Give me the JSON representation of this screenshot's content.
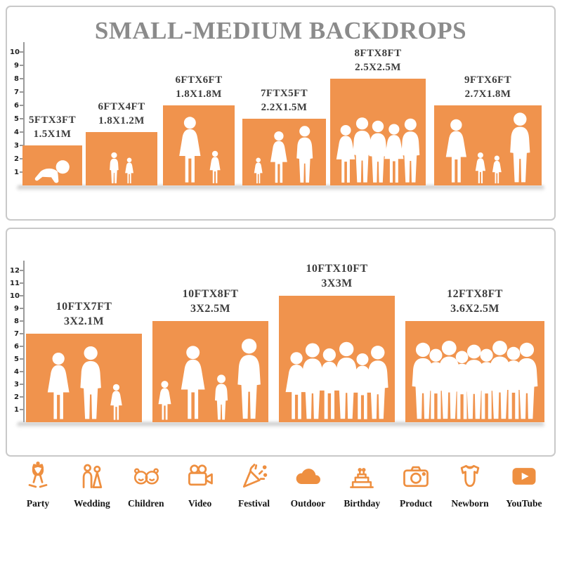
{
  "title": "SMALL-MEDIUM BACKDROPS",
  "accent_color": "#F0934D",
  "panels": [
    {
      "ruler": [
        1,
        2,
        3,
        4,
        5,
        6,
        7,
        8,
        9,
        10
      ],
      "items": [
        {
          "size_ft": "5FTX3FT",
          "size_m": "1.5X1M",
          "w_ft": 5,
          "h_ft": 3,
          "figures": [
            {
              "t": "baby",
              "h": 0.62
            }
          ]
        },
        {
          "size_ft": "6FTX4FT",
          "size_m": "1.8X1.2M",
          "w_ft": 6,
          "h_ft": 4,
          "figures": [
            {
              "t": "boy",
              "h": 0.6
            },
            {
              "t": "girl",
              "h": 0.5
            }
          ]
        },
        {
          "size_ft": "6FTX6FT",
          "size_m": "1.8X1.8M",
          "w_ft": 6,
          "h_ft": 6,
          "figures": [
            {
              "t": "woman",
              "h": 0.85
            },
            {
              "t": "girl",
              "h": 0.42
            }
          ]
        },
        {
          "size_ft": "7FTX5FT",
          "size_m": "2.2X1.5M",
          "w_ft": 7,
          "h_ft": 5,
          "figures": [
            {
              "t": "girl",
              "h": 0.4
            },
            {
              "t": "woman",
              "h": 0.8
            },
            {
              "t": "man",
              "h": 0.88
            }
          ]
        },
        {
          "size_ft": "8FTX8FT",
          "size_m": "2.5X2.5M",
          "w_ft": 8,
          "h_ft": 8,
          "figures": [
            {
              "t": "woman",
              "h": 0.56
            },
            {
              "t": "man",
              "h": 0.63
            },
            {
              "t": "man",
              "h": 0.6
            },
            {
              "t": "woman",
              "h": 0.57
            },
            {
              "t": "man",
              "h": 0.62
            }
          ]
        },
        {
          "size_ft": "9FTX6FT",
          "size_m": "2.7X1.8M",
          "w_ft": 9,
          "h_ft": 6,
          "figures": [
            {
              "t": "woman",
              "h": 0.82
            },
            {
              "t": "girl",
              "h": 0.4
            },
            {
              "t": "girl",
              "h": 0.36
            },
            {
              "t": "man",
              "h": 0.9
            }
          ]
        }
      ]
    },
    {
      "ruler": [
        1,
        2,
        3,
        4,
        5,
        6,
        7,
        8,
        9,
        10,
        11,
        12
      ],
      "items": [
        {
          "size_ft": "10FTX7FT",
          "size_m": "3X2.1M",
          "w_ft": 10,
          "h_ft": 7,
          "figures": [
            {
              "t": "woman",
              "h": 0.78
            },
            {
              "t": "man",
              "h": 0.85
            },
            {
              "t": "girl",
              "h": 0.42
            }
          ]
        },
        {
          "size_ft": "10FTX8FT",
          "size_m": "3X2.5M",
          "w_ft": 10,
          "h_ft": 8,
          "figures": [
            {
              "t": "girl",
              "h": 0.4
            },
            {
              "t": "woman",
              "h": 0.75
            },
            {
              "t": "boy",
              "h": 0.46
            },
            {
              "t": "man",
              "h": 0.82
            }
          ]
        },
        {
          "size_ft": "10FTX10FT",
          "size_m": "3X3M",
          "w_ft": 10,
          "h_ft": 10,
          "figures": [
            {
              "t": "woman",
              "h": 0.55
            },
            {
              "t": "man",
              "h": 0.62
            },
            {
              "t": "woman",
              "h": 0.58
            },
            {
              "t": "man",
              "h": 0.63
            },
            {
              "t": "woman",
              "h": 0.54
            },
            {
              "t": "man",
              "h": 0.6
            }
          ]
        },
        {
          "size_ft": "12FTX8FT",
          "size_m": "3.6X2.5M",
          "w_ft": 12,
          "h_ft": 8,
          "figures": [
            {
              "t": "man",
              "h": 0.78
            },
            {
              "t": "woman",
              "h": 0.72
            },
            {
              "t": "man",
              "h": 0.8
            },
            {
              "t": "woman",
              "h": 0.7
            },
            {
              "t": "man",
              "h": 0.76
            },
            {
              "t": "woman",
              "h": 0.72
            },
            {
              "t": "man",
              "h": 0.8
            },
            {
              "t": "woman",
              "h": 0.74
            },
            {
              "t": "man",
              "h": 0.78
            }
          ]
        }
      ]
    }
  ],
  "categories": [
    {
      "label": "Party",
      "icon": "party-icon"
    },
    {
      "label": "Wedding",
      "icon": "wedding-icon"
    },
    {
      "label": "Children",
      "icon": "children-icon"
    },
    {
      "label": "Video",
      "icon": "video-icon"
    },
    {
      "label": "Festival",
      "icon": "festival-icon"
    },
    {
      "label": "Outdoor",
      "icon": "outdoor-icon"
    },
    {
      "label": "Birthday",
      "icon": "birthday-icon"
    },
    {
      "label": "Product",
      "icon": "product-icon"
    },
    {
      "label": "Newborn",
      "icon": "newborn-icon"
    },
    {
      "label": "YouTube",
      "icon": "youtube-icon"
    }
  ]
}
